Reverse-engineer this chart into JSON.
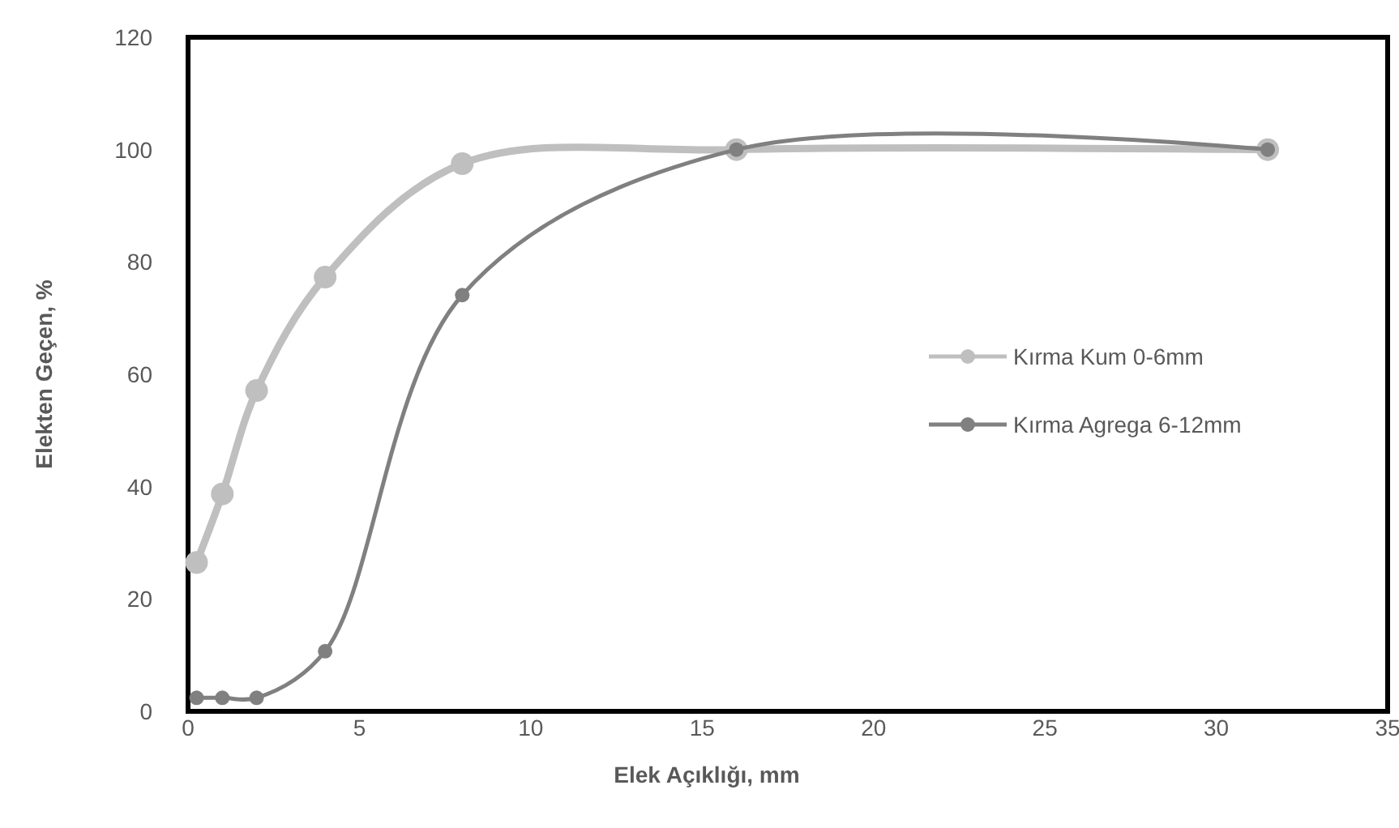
{
  "chart_data": {
    "type": "line",
    "xlabel": "Elek Açıklığı,  mm",
    "ylabel": "Elekten Geçen, %",
    "xlim": [
      0,
      35
    ],
    "ylim": [
      0,
      120
    ],
    "xticks": [
      0,
      5,
      10,
      15,
      20,
      25,
      30,
      35
    ],
    "yticks": [
      0,
      20,
      40,
      60,
      80,
      100,
      120
    ],
    "grid": false,
    "legend": "right",
    "marker": "circle",
    "line_style": "solid",
    "x": [
      0.25,
      1,
      2,
      4,
      8,
      16,
      31.5
    ],
    "series": [
      {
        "name": "Kırma Kum 0-6mm",
        "color": "#bfbfbf",
        "values": [
          26.5,
          38.7,
          57.1,
          77.3,
          97.5,
          100,
          100
        ]
      },
      {
        "name": "Kırma Agrega 6-12mm",
        "color": "#808080",
        "values": [
          2.4,
          2.4,
          2.4,
          10.7,
          74.1,
          100,
          100
        ]
      }
    ]
  }
}
